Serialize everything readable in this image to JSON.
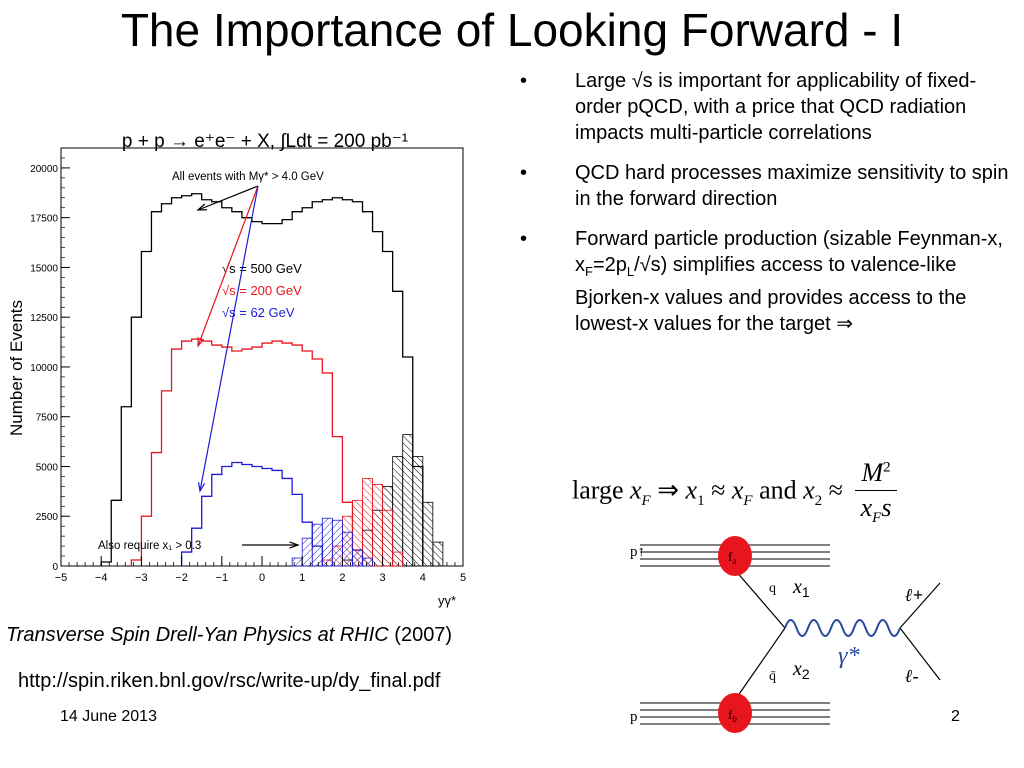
{
  "slide": {
    "title": "The Importance of Looking Forward - I",
    "bullets": [
      {
        "marker": "•",
        "text": "Large √s is important for applicability of fixed-order pQCD, with a price that QCD radiation impacts multi-particle correlations"
      },
      {
        "marker": "•",
        "text": "QCD hard processes maximize sensitivity to spin in the forward direction"
      },
      {
        "marker": "•",
        "pre": "Forward particle production (sizable Feynman-x, x",
        "sub1": "F",
        "mid": "=2p",
        "sub2": "L",
        "post": "/√s) simplifies access to valence-like Bjorken-x values and provides access to the lowest-x values for the target  ⇒"
      }
    ],
    "formula": {
      "large": "large",
      "x": "x",
      "F": "F",
      "implies": "⇒",
      "x1": "x",
      "one": "1",
      "approx": "≈",
      "and": "and",
      "x2": "x",
      "two": "2",
      "M": "M",
      "Msup": "2",
      "s": "s"
    },
    "citation": {
      "title": "Transverse Spin Drell-Yan Physics at RHIC",
      "year": "(2007)"
    },
    "url": "http://spin.riken.bnl.gov/rsc/write-up/dy_final.pdf",
    "date": "14 June 2013",
    "page": "2"
  },
  "feynman": {
    "p_up": "p↑",
    "p": "p",
    "fa": "f",
    "fa_sub": "a",
    "fb": "f",
    "fb_sub": "b",
    "q": "q",
    "qbar": "q̄",
    "x1": "x",
    "x1_sub": "1",
    "x2": "x",
    "x2_sub": "2",
    "gamma": "γ*",
    "lplus": "ℓ+",
    "lminus": "ℓ-",
    "colors": {
      "blob": "#e8141e",
      "photon": "#2c4aa0"
    }
  },
  "chart_data": {
    "type": "histogram",
    "title": "p + p → e⁺e⁻ + X, ∫Ldt = 200 pb⁻¹",
    "xlabel": "yγ*",
    "ylabel": "Number of Events",
    "xlim": [
      -5,
      5
    ],
    "ylim": [
      0,
      21000
    ],
    "xticks": [
      -5,
      -4,
      -3,
      -2,
      -1,
      0,
      1,
      2,
      3,
      4,
      5
    ],
    "yticks": [
      0,
      2500,
      5000,
      7500,
      10000,
      12500,
      15000,
      17500,
      20000
    ],
    "bin_width": 0.25,
    "series": [
      {
        "name": "√s = 500 GeV",
        "color": "#000000",
        "edges_start": -4.0,
        "values": [
          200,
          3300,
          8000,
          12500,
          15800,
          17800,
          18200,
          18500,
          18600,
          18700,
          18400,
          18300,
          18000,
          17800,
          17500,
          17300,
          17200,
          17200,
          17400,
          17800,
          18000,
          18300,
          18400,
          18500,
          18400,
          18300,
          17800,
          16800,
          15800,
          13800,
          10500,
          5000
        ]
      },
      {
        "name": "√s = 200 GeV",
        "color": "#e8141e",
        "edges_start": -3.25,
        "values": [
          300,
          2500,
          5700,
          8800,
          10900,
          11300,
          11400,
          11300,
          11100,
          11000,
          10800,
          10900,
          11000,
          11200,
          11300,
          11200,
          11100,
          10800,
          10400,
          9700,
          6500,
          3200,
          800
        ]
      },
      {
        "name": "√s = 62 GeV",
        "color": "#1c1cd8",
        "edges_start": -2.0,
        "values": [
          700,
          1900,
          3500,
          4600,
          5000,
          5200,
          5100,
          5000,
          4900,
          4800,
          4400,
          3600,
          2200,
          1000
        ]
      },
      {
        "name": "√s = 500 GeV, x₁ > 0.3",
        "color": "#000000",
        "hatched": true,
        "edges_start": 2.0,
        "values": [
          300,
          800,
          1800,
          2800,
          4000,
          5500,
          6600,
          5500,
          3200,
          1200
        ]
      },
      {
        "name": "√s = 200 GeV, x₁ > 0.3",
        "color": "#e8141e",
        "hatched": true,
        "edges_start": 1.5,
        "values": [
          300,
          1000,
          2500,
          3300,
          4400,
          4100,
          2800,
          700
        ]
      },
      {
        "name": "√s = 62 GeV, x₁ > 0.3",
        "color": "#1c1cd8",
        "hatched": true,
        "edges_start": 0.75,
        "values": [
          400,
          1400,
          2100,
          2400,
          2300,
          1700,
          800,
          400
        ]
      }
    ],
    "legend": [
      {
        "text": "√s = 500 GeV",
        "color": "#000000"
      },
      {
        "text": "√s = 200 GeV",
        "color": "#e8141e"
      },
      {
        "text": "√s = 62 GeV",
        "color": "#1c1cd8"
      }
    ],
    "annotations": [
      {
        "text": "All events with Mγ* > 4.0 GeV"
      },
      {
        "text": "Also require x₁ > 0.3"
      }
    ]
  }
}
